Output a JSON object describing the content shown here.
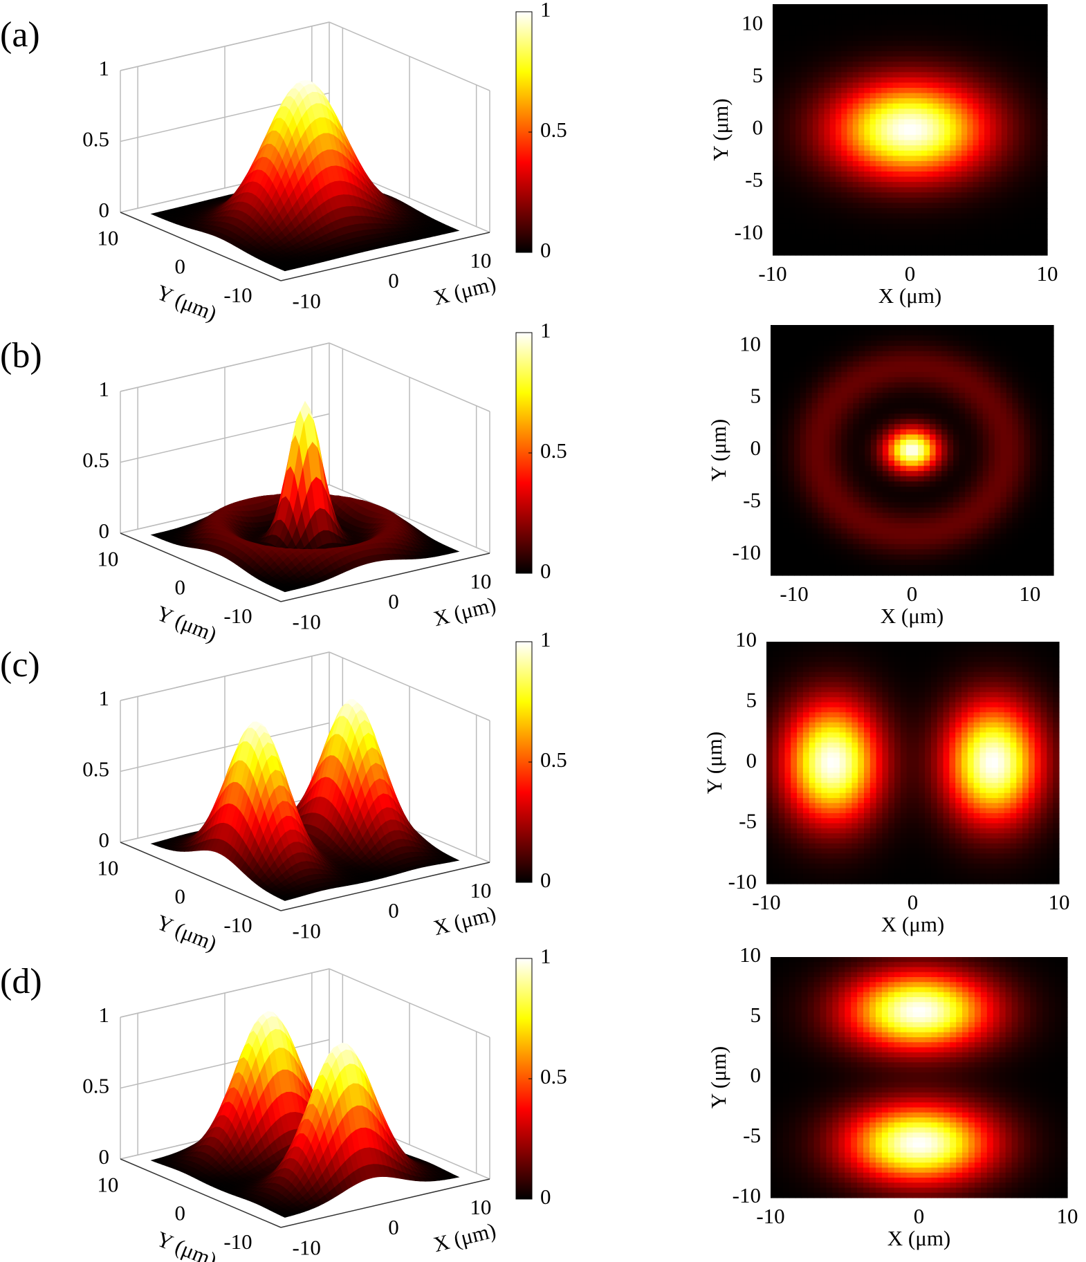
{
  "chart_data": [
    {
      "type": "mode",
      "label": "(a)",
      "surface": {
        "xlabel": "X (μm)",
        "ylabel": "Y (μm)",
        "xlim": [
          -12,
          12
        ],
        "ylim": [
          -12,
          12
        ],
        "zlim": [
          0,
          1
        ],
        "xticks": [
          -10,
          0,
          10
        ],
        "yticks": [
          -10,
          0,
          10
        ],
        "zticks": [
          0,
          0.5,
          1
        ]
      },
      "colorbar": {
        "lim": [
          0,
          1
        ],
        "ticks": [
          0,
          0.5,
          1
        ]
      },
      "map": {
        "xlabel": "X (μm)",
        "ylabel": "Y (μm)",
        "xlim": [
          -10,
          10
        ],
        "ylim": [
          -12,
          12
        ],
        "xticks": [
          -10,
          0,
          10
        ],
        "yticks": [
          -10,
          -5,
          0,
          5,
          10
        ]
      },
      "peaks": [
        {
          "x": 0,
          "y": 0,
          "amplitude": 1,
          "wx": 5.5,
          "wy": 4.5
        }
      ],
      "rings": []
    },
    {
      "type": "mode",
      "label": "(b)",
      "surface": {
        "xlabel": "X (μm)",
        "ylabel": "Y (μm)",
        "xlim": [
          -12,
          12
        ],
        "ylim": [
          -12,
          12
        ],
        "zlim": [
          0,
          1
        ],
        "xticks": [
          -10,
          0,
          10
        ],
        "yticks": [
          -10,
          0,
          10
        ],
        "zticks": [
          0,
          0.5,
          1
        ]
      },
      "colorbar": {
        "lim": [
          0,
          1
        ],
        "ticks": [
          0,
          0.5,
          1
        ]
      },
      "map": {
        "xlabel": "X (μm)",
        "ylabel": "Y (μm)",
        "xlim": [
          -12,
          12
        ],
        "ylim": [
          -12,
          12
        ],
        "xticks": [
          -10,
          0,
          10
        ],
        "yticks": [
          -10,
          -5,
          0,
          5,
          10
        ]
      },
      "peaks": [
        {
          "x": 0,
          "y": 0,
          "amplitude": 1,
          "wx": 2.2,
          "wy": 2
        }
      ],
      "rings": [
        {
          "radius": 8,
          "amplitude": 0.15,
          "width": 2.2
        }
      ]
    },
    {
      "type": "mode",
      "label": "(c)",
      "surface": {
        "xlabel": "X (μm)",
        "ylabel": "Y (μm)",
        "xlim": [
          -12,
          12
        ],
        "ylim": [
          -12,
          12
        ],
        "zlim": [
          0,
          1
        ],
        "xticks": [
          -10,
          0,
          10
        ],
        "yticks": [
          -10,
          0,
          10
        ],
        "zticks": [
          0,
          0.5,
          1
        ]
      },
      "colorbar": {
        "lim": [
          0,
          1
        ],
        "ticks": [
          0,
          0.5,
          1
        ]
      },
      "map": {
        "xlabel": "X (μm)",
        "ylabel": "Y (μm)",
        "xlim": [
          -10,
          10
        ],
        "ylim": [
          -10,
          10
        ],
        "xticks": [
          -10,
          0,
          10
        ],
        "yticks": [
          -10,
          -5,
          0,
          5,
          10
        ]
      },
      "peaks": [
        {
          "x": -5.5,
          "y": 0,
          "amplitude": 1,
          "wx": 3.2,
          "wy": 4.8
        },
        {
          "x": 5.5,
          "y": 0,
          "amplitude": 1,
          "wx": 3.2,
          "wy": 4.8
        }
      ],
      "rings": []
    },
    {
      "type": "mode",
      "label": "(d)",
      "surface": {
        "xlabel": "X (μm)",
        "ylabel": "Y (μm)",
        "xlim": [
          -12,
          12
        ],
        "ylim": [
          -12,
          12
        ],
        "zlim": [
          0,
          1
        ],
        "xticks": [
          -10,
          0,
          10
        ],
        "yticks": [
          -10,
          0,
          10
        ],
        "zticks": [
          0,
          0.5,
          1
        ]
      },
      "colorbar": {
        "lim": [
          0,
          1
        ],
        "ticks": [
          0,
          0.5,
          1
        ]
      },
      "map": {
        "xlabel": "X (μm)",
        "ylabel": "Y (μm)",
        "xlim": [
          -10,
          10
        ],
        "ylim": [
          -10,
          10
        ],
        "xticks": [
          -10,
          0,
          10
        ],
        "yticks": [
          -10,
          -5,
          0,
          5,
          10
        ]
      },
      "peaks": [
        {
          "x": 0,
          "y": 5.5,
          "amplitude": 1,
          "wx": 4.8,
          "wy": 3.2
        },
        {
          "x": 0,
          "y": -5.5,
          "amplitude": 1,
          "wx": 4.8,
          "wy": 3.2
        }
      ],
      "rings": []
    }
  ]
}
